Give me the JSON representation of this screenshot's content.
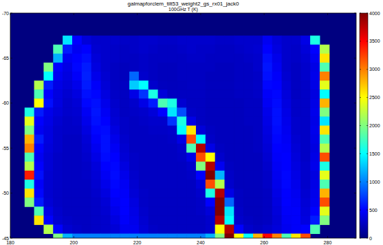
{
  "chart_data": {
    "type": "heatmap",
    "title": "galmapforclem_tilt53_weight2_gs_rx01_jack0",
    "subtitle": "100GHz T (K)",
    "x": [
      186,
      189,
      192,
      195,
      198,
      201,
      204,
      207,
      210,
      213,
      216,
      219,
      222,
      225,
      228,
      231,
      234,
      237,
      240,
      243,
      246,
      249,
      252,
      255,
      258,
      261,
      264,
      267,
      270,
      273,
      276,
      279
    ],
    "y": [
      -67,
      -66,
      -65,
      -64,
      -63,
      -62,
      -61,
      -60,
      -59,
      -58,
      -57,
      -56,
      -55,
      -54,
      -53,
      -52,
      -51,
      -50,
      -49,
      -48,
      -47,
      -46,
      -45
    ],
    "values": [
      [
        null,
        null,
        null,
        null,
        1400,
        500,
        350,
        300,
        300,
        300,
        280,
        280,
        300,
        300,
        280,
        280,
        300,
        300,
        300,
        300,
        280,
        280,
        300,
        300,
        300,
        450,
        350,
        300,
        300,
        400,
        1600,
        null
      ],
      [
        null,
        null,
        null,
        1800,
        600,
        450,
        500,
        320,
        300,
        280,
        260,
        280,
        300,
        280,
        260,
        260,
        280,
        300,
        280,
        280,
        260,
        260,
        280,
        300,
        320,
        500,
        380,
        300,
        280,
        350,
        500,
        2200
      ],
      [
        null,
        null,
        null,
        1200,
        450,
        500,
        550,
        350,
        300,
        280,
        260,
        260,
        280,
        260,
        260,
        260,
        260,
        280,
        280,
        260,
        260,
        260,
        260,
        280,
        300,
        550,
        420,
        300,
        280,
        320,
        450,
        2600
      ],
      [
        null,
        null,
        2000,
        500,
        400,
        520,
        600,
        380,
        300,
        260,
        240,
        260,
        280,
        260,
        240,
        240,
        260,
        260,
        260,
        260,
        240,
        240,
        260,
        260,
        300,
        580,
        450,
        300,
        260,
        300,
        400,
        1800
      ],
      [
        null,
        null,
        1500,
        450,
        380,
        480,
        620,
        420,
        320,
        260,
        240,
        900,
        300,
        260,
        240,
        240,
        260,
        260,
        260,
        240,
        240,
        240,
        260,
        260,
        280,
        560,
        480,
        320,
        260,
        300,
        420,
        3000
      ],
      [
        null,
        2200,
        600,
        400,
        350,
        420,
        600,
        480,
        340,
        260,
        260,
        1300,
        1500,
        300,
        250,
        240,
        250,
        260,
        260,
        240,
        240,
        240,
        260,
        260,
        280,
        520,
        500,
        340,
        260,
        280,
        400,
        2400
      ],
      [
        null,
        1800,
        500,
        380,
        320,
        380,
        560,
        520,
        380,
        280,
        260,
        400,
        700,
        1600,
        350,
        260,
        260,
        260,
        260,
        240,
        240,
        240,
        260,
        260,
        280,
        480,
        520,
        360,
        260,
        280,
        380,
        1500
      ],
      [
        null,
        2500,
        550,
        380,
        300,
        340,
        520,
        560,
        420,
        300,
        260,
        300,
        400,
        600,
        1800,
        1600,
        320,
        260,
        260,
        240,
        240,
        240,
        240,
        260,
        260,
        460,
        540,
        380,
        280,
        280,
        400,
        2800
      ],
      [
        1600,
        600,
        420,
        350,
        300,
        320,
        460,
        580,
        460,
        320,
        260,
        280,
        300,
        350,
        500,
        1400,
        800,
        280,
        260,
        240,
        240,
        240,
        240,
        260,
        260,
        420,
        560,
        400,
        280,
        280,
        420,
        2000
      ],
      [
        2400,
        500,
        400,
        320,
        280,
        300,
        420,
        560,
        500,
        340,
        280,
        260,
        280,
        300,
        300,
        700,
        1600,
        400,
        260,
        240,
        240,
        240,
        240,
        260,
        260,
        400,
        560,
        420,
        300,
        280,
        400,
        1400
      ],
      [
        2000,
        450,
        380,
        300,
        280,
        280,
        380,
        520,
        540,
        380,
        280,
        260,
        260,
        280,
        280,
        300,
        1500,
        2600,
        350,
        260,
        240,
        240,
        240,
        240,
        260,
        380,
        540,
        440,
        300,
        280,
        420,
        2600
      ],
      [
        2800,
        600,
        380,
        300,
        260,
        260,
        340,
        480,
        560,
        420,
        300,
        260,
        260,
        260,
        260,
        280,
        400,
        3200,
        1500,
        280,
        240,
        240,
        240,
        240,
        260,
        360,
        520,
        460,
        320,
        280,
        400,
        1800
      ],
      [
        3000,
        500,
        360,
        300,
        260,
        260,
        320,
        440,
        560,
        460,
        320,
        260,
        260,
        260,
        260,
        260,
        300,
        1800,
        3800,
        400,
        260,
        240,
        240,
        240,
        260,
        340,
        500,
        480,
        340,
        280,
        380,
        2200
      ],
      [
        1800,
        450,
        340,
        280,
        260,
        260,
        300,
        400,
        540,
        500,
        340,
        280,
        260,
        260,
        260,
        260,
        280,
        400,
        3200,
        2500,
        300,
        240,
        240,
        240,
        240,
        320,
        480,
        500,
        360,
        280,
        400,
        3200
      ],
      [
        2200,
        500,
        340,
        280,
        260,
        260,
        280,
        360,
        500,
        520,
        380,
        280,
        260,
        260,
        260,
        260,
        260,
        300,
        2000,
        3800,
        450,
        260,
        240,
        240,
        240,
        300,
        460,
        500,
        380,
        300,
        420,
        1600
      ],
      [
        3400,
        550,
        320,
        280,
        260,
        260,
        280,
        340,
        460,
        540,
        420,
        300,
        260,
        260,
        260,
        260,
        260,
        280,
        500,
        4000,
        1200,
        280,
        240,
        240,
        240,
        280,
        440,
        520,
        400,
        300,
        380,
        2400
      ],
      [
        1600,
        480,
        320,
        280,
        260,
        260,
        260,
        320,
        420,
        520,
        460,
        320,
        260,
        260,
        260,
        260,
        260,
        260,
        350,
        3200,
        2200,
        300,
        240,
        240,
        240,
        280,
        420,
        520,
        420,
        300,
        400,
        1800
      ],
      [
        2600,
        520,
        320,
        280,
        260,
        260,
        260,
        300,
        380,
        500,
        480,
        340,
        280,
        260,
        260,
        260,
        260,
        260,
        300,
        1600,
        3800,
        400,
        260,
        240,
        240,
        260,
        400,
        500,
        440,
        320,
        420,
        2800
      ],
      [
        2000,
        600,
        340,
        280,
        260,
        260,
        260,
        280,
        340,
        460,
        500,
        380,
        280,
        260,
        260,
        260,
        260,
        260,
        280,
        500,
        4000,
        900,
        260,
        240,
        240,
        260,
        380,
        500,
        460,
        340,
        440,
        3200
      ],
      [
        null,
        1800,
        400,
        300,
        260,
        260,
        260,
        280,
        320,
        420,
        500,
        400,
        300,
        260,
        260,
        260,
        260,
        260,
        280,
        350,
        4000,
        1400,
        280,
        240,
        240,
        260,
        360,
        480,
        480,
        360,
        500,
        2400
      ],
      [
        null,
        2600,
        500,
        320,
        280,
        260,
        260,
        280,
        300,
        380,
        480,
        420,
        320,
        260,
        260,
        260,
        260,
        260,
        260,
        300,
        3800,
        1500,
        300,
        260,
        240,
        260,
        340,
        460,
        480,
        380,
        600,
        2000
      ],
      [
        null,
        null,
        2200,
        500,
        320,
        280,
        260,
        280,
        300,
        340,
        440,
        440,
        340,
        280,
        260,
        260,
        260,
        260,
        260,
        300,
        2500,
        3800,
        500,
        300,
        260,
        300,
        360,
        440,
        480,
        500,
        1800,
        null
      ],
      [
        null,
        null,
        null,
        2000,
        1200,
        1000,
        1000,
        1000,
        1000,
        1000,
        1000,
        1000,
        1000,
        1000,
        1000,
        1000,
        1000,
        1000,
        1000,
        1200,
        2000,
        4000,
        2500,
        1500,
        2800,
        3500,
        3000,
        1800,
        2600,
        3200,
        null,
        null
      ]
    ],
    "xlim": [
      180,
      289
    ],
    "ylim": [
      -45,
      -70
    ],
    "xticks": [
      180,
      200,
      220,
      240,
      260,
      280
    ],
    "yticks": [
      -70,
      -65,
      -60,
      -55,
      -50,
      -45
    ],
    "colorbar_lim": [
      0,
      4000
    ],
    "colorbar_ticks": [
      0,
      500,
      1000,
      1500,
      2000,
      2500,
      3000,
      3500,
      4000
    ]
  }
}
